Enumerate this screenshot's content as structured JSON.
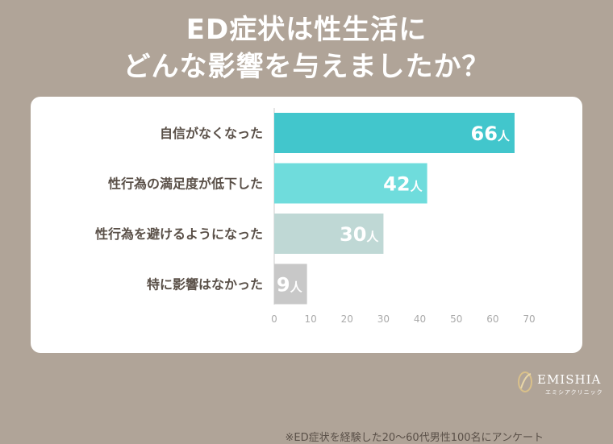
{
  "title": {
    "line1": "ED症状は性生活に",
    "line2": "どんな影響を与えましたか？"
  },
  "note": "※ED症状を経験した20〜60代男性100名にアンケート",
  "logo": {
    "name": "EMISHIA",
    "sub": "エミシアクリニック"
  },
  "chart_data": {
    "type": "bar",
    "orientation": "horizontal",
    "categories": [
      "自信がなくなった",
      "性行為の満足度が低下した",
      "性行為を避けるようになった",
      "特に影響はなかった"
    ],
    "values": [
      66,
      42,
      30,
      9
    ],
    "unit": "人",
    "xlim": [
      0,
      70
    ],
    "xticks": [
      0,
      10,
      20,
      30,
      40,
      50,
      60,
      70
    ],
    "grid": false,
    "colors": [
      "#42c6cc",
      "#6fdcdc",
      "#bfd8d5",
      "#c8c8c8"
    ]
  }
}
